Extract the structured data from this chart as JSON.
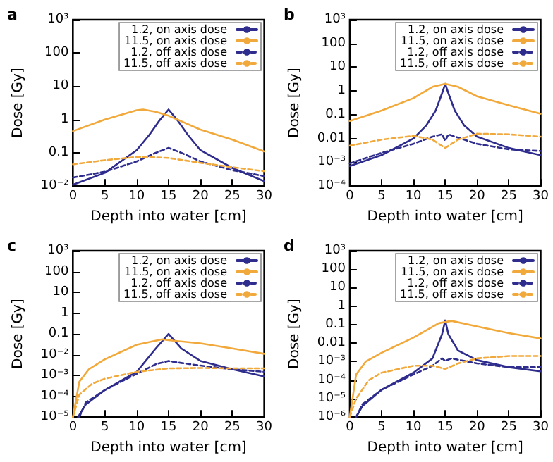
{
  "chart_data": [
    {
      "type": "line",
      "title": "a",
      "xlabel": "Depth into water [cm]",
      "ylabel": "Dose [Gy]",
      "log": "y",
      "xlim": [
        0,
        30
      ],
      "xticks": [
        0,
        5,
        10,
        15,
        20,
        25,
        30
      ],
      "ylim": [
        0.01,
        1000
      ],
      "yticks": [
        {
          "value": 0.01,
          "label": "10⁻²"
        },
        0.1,
        1,
        10,
        100,
        {
          "value": 1000,
          "label": "10³"
        }
      ],
      "legend": "top right",
      "grid": false,
      "marker": "none",
      "series": [
        {
          "name": "1.2, on axis dose",
          "color": "#2e2c8c",
          "line_style": "solid",
          "x": [
            0,
            5,
            10,
            12,
            13.5,
            15,
            16.5,
            18,
            20,
            25,
            30
          ],
          "values": [
            0.011,
            0.025,
            0.12,
            0.35,
            0.9,
            2.0,
            0.9,
            0.35,
            0.12,
            0.035,
            0.014
          ]
        },
        {
          "name": "11.5, on axis dose",
          "color": "#f2a93b",
          "line_style": "solid",
          "x": [
            0,
            5,
            10,
            11,
            13,
            15,
            20,
            25,
            30
          ],
          "values": [
            0.45,
            1.0,
            1.9,
            2.0,
            1.7,
            1.3,
            0.5,
            0.25,
            0.11
          ]
        },
        {
          "name": "1.2, off axis dose",
          "color": "#2e2c8c",
          "line_style": "dashed",
          "x": [
            0,
            5,
            10,
            13,
            15,
            17,
            20,
            25,
            30
          ],
          "values": [
            0.018,
            0.027,
            0.055,
            0.1,
            0.14,
            0.1,
            0.055,
            0.03,
            0.02
          ]
        },
        {
          "name": "11.5, off axis dose",
          "color": "#f2a93b",
          "line_style": "dashed",
          "x": [
            0,
            5,
            10,
            12,
            15,
            20,
            25,
            30
          ],
          "values": [
            0.045,
            0.06,
            0.075,
            0.075,
            0.07,
            0.05,
            0.037,
            0.028
          ]
        }
      ]
    },
    {
      "type": "line",
      "title": "b",
      "xlabel": "Depth into water [cm]",
      "ylabel": "Dose [Gy]",
      "log": "y",
      "xlim": [
        0,
        30
      ],
      "xticks": [
        0,
        5,
        10,
        15,
        20,
        25,
        30
      ],
      "ylim": [
        0.0001,
        1000
      ],
      "yticks": [
        {
          "value": 0.0001,
          "label": "10⁻⁴"
        },
        {
          "value": 0.001,
          "label": "10⁻³"
        },
        0.01,
        0.1,
        1,
        10,
        100,
        {
          "value": 1000,
          "label": "10³"
        }
      ],
      "legend": "top right",
      "grid": false,
      "marker": "none",
      "series": [
        {
          "name": "1.2, on axis dose",
          "color": "#2e2c8c",
          "line_style": "solid",
          "x": [
            0,
            5,
            10,
            12,
            13.5,
            14.5,
            15,
            15.5,
            16.5,
            18,
            20,
            25,
            30
          ],
          "values": [
            0.0007,
            0.002,
            0.01,
            0.035,
            0.15,
            0.8,
            2.0,
            0.8,
            0.15,
            0.035,
            0.012,
            0.004,
            0.002
          ]
        },
        {
          "name": "11.5, on axis dose",
          "color": "#f2a93b",
          "line_style": "solid",
          "x": [
            0,
            5,
            10,
            13,
            15,
            17,
            20,
            25,
            30
          ],
          "values": [
            0.055,
            0.15,
            0.5,
            1.5,
            2.0,
            1.5,
            0.6,
            0.25,
            0.11
          ]
        },
        {
          "name": "1.2, off axis dose",
          "color": "#2e2c8c",
          "line_style": "dashed",
          "x": [
            0,
            5,
            10,
            13,
            14.5,
            15,
            15.5,
            17,
            20,
            25,
            30
          ],
          "values": [
            0.0009,
            0.0025,
            0.006,
            0.012,
            0.015,
            0.008,
            0.015,
            0.011,
            0.006,
            0.0035,
            0.003
          ]
        },
        {
          "name": "11.5, off axis dose",
          "color": "#f2a93b",
          "line_style": "dashed",
          "x": [
            0,
            5,
            10,
            13,
            15,
            17,
            20,
            25,
            30
          ],
          "values": [
            0.005,
            0.009,
            0.013,
            0.009,
            0.004,
            0.009,
            0.016,
            0.015,
            0.012
          ]
        }
      ]
    },
    {
      "type": "line",
      "title": "c",
      "xlabel": "Depth into water [cm]",
      "ylabel": "Dose [Gy]",
      "log": "y",
      "xlim": [
        0,
        30
      ],
      "xticks": [
        0,
        5,
        10,
        15,
        20,
        25,
        30
      ],
      "ylim": [
        1e-05,
        1000
      ],
      "yticks": [
        {
          "value": 1e-05,
          "label": "10⁻⁵"
        },
        {
          "value": 0.0001,
          "label": "10⁻⁴"
        },
        {
          "value": 0.001,
          "label": "10⁻³"
        },
        {
          "value": 0.01,
          "label": "10⁻²"
        },
        0.1,
        1,
        10,
        100,
        {
          "value": 1000,
          "label": "10³"
        }
      ],
      "legend": "top right",
      "grid": false,
      "marker": "none",
      "series": [
        {
          "name": "1.2, on axis dose",
          "color": "#2e2c8c",
          "line_style": "solid",
          "x": [
            0.8,
            2,
            5,
            10,
            13,
            15,
            17,
            20,
            25,
            30
          ],
          "values": [
            1e-05,
            4e-05,
            0.0002,
            0.0015,
            0.02,
            0.1,
            0.02,
            0.005,
            0.002,
            0.0009
          ]
        },
        {
          "name": "11.5, on axis dose",
          "color": "#f2a93b",
          "line_style": "solid",
          "x": [
            0,
            1,
            2.5,
            5,
            10,
            14,
            15,
            20,
            25,
            30
          ],
          "values": [
            1e-05,
            0.0005,
            0.002,
            0.006,
            0.03,
            0.055,
            0.05,
            0.035,
            0.02,
            0.011
          ]
        },
        {
          "name": "1.2, off axis dose",
          "color": "#2e2c8c",
          "line_style": "dashed",
          "x": [
            1,
            2,
            5,
            10,
            13,
            15,
            17,
            20,
            25,
            30
          ],
          "values": [
            1e-05,
            5e-05,
            0.0002,
            0.0012,
            0.0035,
            0.005,
            0.004,
            0.003,
            0.002,
            0.0015
          ]
        },
        {
          "name": "11.5, off axis dose",
          "color": "#f2a93b",
          "line_style": "dashed",
          "x": [
            0,
            1,
            3,
            5,
            10,
            15,
            20,
            25,
            30
          ],
          "values": [
            1e-05,
            0.00012,
            0.0004,
            0.0007,
            0.0015,
            0.0022,
            0.0023,
            0.0022,
            0.0022
          ]
        }
      ]
    },
    {
      "type": "line",
      "title": "d",
      "xlabel": "Depth into water [cm]",
      "ylabel": "Dose [Gy]",
      "log": "y",
      "xlim": [
        0,
        30
      ],
      "xticks": [
        0,
        5,
        10,
        15,
        20,
        25,
        30
      ],
      "ylim": [
        1e-06,
        1000
      ],
      "yticks": [
        {
          "value": 1e-06,
          "label": "10⁻⁶"
        },
        {
          "value": 1e-05,
          "label": "10⁻⁵"
        },
        {
          "value": 0.0001,
          "label": "10⁻⁴"
        },
        {
          "value": 0.001,
          "label": "10⁻³"
        },
        0.01,
        0.1,
        1,
        10,
        100,
        {
          "value": 1000,
          "label": "10³"
        }
      ],
      "legend": "top right",
      "grid": false,
      "marker": "none",
      "series": [
        {
          "name": "1.2, on axis dose",
          "color": "#2e2c8c",
          "line_style": "solid",
          "x": [
            1,
            2,
            5,
            10,
            13,
            14.5,
            15,
            15.5,
            17,
            20,
            25,
            30
          ],
          "values": [
            1e-06,
            4e-06,
            3e-05,
            0.00025,
            0.0015,
            0.03,
            0.17,
            0.03,
            0.004,
            0.0012,
            0.0005,
            0.0003
          ]
        },
        {
          "name": "11.5, on axis dose",
          "color": "#f2a93b",
          "line_style": "solid",
          "x": [
            0,
            1,
            2.5,
            5,
            10,
            14,
            16,
            20,
            25,
            30
          ],
          "values": [
            1e-06,
            0.0002,
            0.001,
            0.003,
            0.02,
            0.12,
            0.16,
            0.08,
            0.035,
            0.018
          ]
        },
        {
          "name": "1.2, off axis dose",
          "color": "#2e2c8c",
          "line_style": "dashed",
          "x": [
            1,
            2,
            5,
            10,
            13,
            14.5,
            15,
            16,
            20,
            25,
            30
          ],
          "values": [
            1e-06,
            5e-06,
            3e-05,
            0.0002,
            0.0006,
            0.0015,
            0.0011,
            0.0015,
            0.0008,
            0.0005,
            0.0005
          ]
        },
        {
          "name": "11.5, off axis dose",
          "color": "#f2a93b",
          "line_style": "dashed",
          "x": [
            0,
            1,
            3,
            5,
            10,
            13,
            15,
            17,
            20,
            25,
            30
          ],
          "values": [
            1e-06,
            1e-05,
            0.0001,
            0.00025,
            0.0006,
            0.0006,
            0.0004,
            0.0008,
            0.0015,
            0.002,
            0.002
          ]
        }
      ]
    }
  ]
}
